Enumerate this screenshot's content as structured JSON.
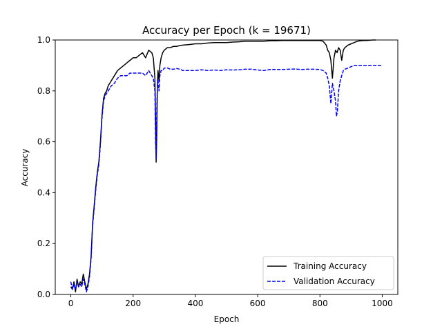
{
  "chart_data": {
    "type": "line",
    "title": "Accuracy per Epoch (k = 19671)",
    "xlabel": "Epoch",
    "ylabel": "Accuracy",
    "xlim": [
      -50,
      1050
    ],
    "ylim": [
      0,
      1.0
    ],
    "xticks": [
      0,
      200,
      400,
      600,
      800,
      1000
    ],
    "yticks": [
      0.0,
      0.2,
      0.4,
      0.6,
      0.8,
      1.0
    ],
    "xtick_labels": [
      "0",
      "200",
      "400",
      "600",
      "800",
      "1000"
    ],
    "ytick_labels": [
      "0.0",
      "0.2",
      "0.4",
      "0.6",
      "0.8",
      "1.0"
    ],
    "legend_position": "lower-right",
    "grid": false,
    "series": [
      {
        "name": "Training Accuracy",
        "color": "#000000",
        "dash": "solid",
        "x": [
          0,
          5,
          10,
          15,
          20,
          25,
          30,
          35,
          40,
          45,
          50,
          55,
          60,
          65,
          70,
          75,
          80,
          85,
          90,
          95,
          100,
          105,
          110,
          115,
          120,
          130,
          140,
          150,
          160,
          170,
          180,
          190,
          200,
          210,
          220,
          230,
          240,
          250,
          260,
          265,
          270,
          272,
          274,
          276,
          278,
          280,
          283,
          286,
          290,
          295,
          300,
          310,
          320,
          330,
          340,
          350,
          360,
          380,
          400,
          420,
          440,
          460,
          480,
          500,
          520,
          540,
          560,
          580,
          600,
          620,
          640,
          660,
          680,
          700,
          720,
          740,
          760,
          780,
          800,
          810,
          820,
          825,
          830,
          835,
          840,
          845,
          850,
          855,
          860,
          865,
          870,
          875,
          880,
          890,
          900,
          910,
          920,
          930,
          940,
          950,
          960,
          970,
          980
        ],
        "y": [
          0.03,
          0.02,
          0.05,
          0.01,
          0.06,
          0.03,
          0.05,
          0.04,
          0.08,
          0.05,
          0.02,
          0.04,
          0.08,
          0.15,
          0.28,
          0.35,
          0.42,
          0.48,
          0.52,
          0.6,
          0.7,
          0.77,
          0.79,
          0.8,
          0.82,
          0.84,
          0.86,
          0.88,
          0.89,
          0.9,
          0.91,
          0.92,
          0.93,
          0.93,
          0.94,
          0.95,
          0.93,
          0.96,
          0.95,
          0.93,
          0.85,
          0.7,
          0.52,
          0.63,
          0.82,
          0.88,
          0.84,
          0.9,
          0.93,
          0.95,
          0.96,
          0.97,
          0.97,
          0.975,
          0.975,
          0.978,
          0.98,
          0.982,
          0.985,
          0.985,
          0.988,
          0.99,
          0.99,
          0.99,
          0.992,
          0.993,
          0.995,
          0.995,
          0.995,
          0.995,
          0.997,
          0.997,
          0.998,
          0.998,
          0.998,
          0.998,
          0.998,
          0.998,
          0.998,
          0.995,
          0.98,
          0.96,
          0.95,
          0.92,
          0.85,
          0.93,
          0.96,
          0.95,
          0.97,
          0.96,
          0.92,
          0.96,
          0.97,
          0.98,
          0.985,
          0.99,
          0.995,
          0.997,
          0.998,
          0.998,
          0.999,
          1.0,
          1.0
        ]
      },
      {
        "name": "Validation Accuracy",
        "color": "#0000ff",
        "dash": "dashed",
        "x": [
          0,
          5,
          10,
          15,
          20,
          25,
          30,
          35,
          40,
          45,
          50,
          55,
          60,
          65,
          70,
          75,
          80,
          85,
          90,
          95,
          100,
          105,
          110,
          115,
          120,
          130,
          140,
          150,
          160,
          170,
          180,
          190,
          200,
          210,
          220,
          230,
          240,
          250,
          260,
          265,
          270,
          272,
          274,
          276,
          278,
          280,
          283,
          286,
          290,
          295,
          300,
          310,
          320,
          330,
          340,
          350,
          360,
          380,
          400,
          420,
          440,
          460,
          480,
          500,
          520,
          540,
          560,
          580,
          600,
          620,
          640,
          660,
          680,
          700,
          720,
          740,
          760,
          780,
          800,
          810,
          820,
          825,
          830,
          835,
          840,
          845,
          850,
          853,
          856,
          860,
          865,
          870,
          875,
          880,
          890,
          900,
          910,
          920,
          930,
          940,
          950,
          960,
          970,
          980,
          990,
          1000
        ],
        "y": [
          0.05,
          0.02,
          0.04,
          0.02,
          0.05,
          0.03,
          0.04,
          0.03,
          0.06,
          0.04,
          0.01,
          0.03,
          0.07,
          0.14,
          0.27,
          0.34,
          0.41,
          0.47,
          0.51,
          0.59,
          0.69,
          0.76,
          0.78,
          0.79,
          0.8,
          0.82,
          0.83,
          0.85,
          0.86,
          0.86,
          0.86,
          0.87,
          0.87,
          0.87,
          0.87,
          0.87,
          0.86,
          0.88,
          0.86,
          0.85,
          0.8,
          0.6,
          0.53,
          0.72,
          0.82,
          0.84,
          0.8,
          0.86,
          0.88,
          0.88,
          0.89,
          0.89,
          0.885,
          0.885,
          0.888,
          0.885,
          0.88,
          0.88,
          0.88,
          0.883,
          0.88,
          0.882,
          0.88,
          0.883,
          0.882,
          0.883,
          0.885,
          0.885,
          0.882,
          0.88,
          0.884,
          0.884,
          0.884,
          0.885,
          0.886,
          0.884,
          0.885,
          0.885,
          0.884,
          0.88,
          0.87,
          0.85,
          0.82,
          0.75,
          0.83,
          0.8,
          0.76,
          0.7,
          0.72,
          0.8,
          0.84,
          0.86,
          0.88,
          0.885,
          0.89,
          0.895,
          0.9,
          0.9,
          0.9,
          0.9,
          0.9,
          0.9,
          0.9,
          0.9,
          0.9,
          0.9
        ]
      }
    ]
  }
}
